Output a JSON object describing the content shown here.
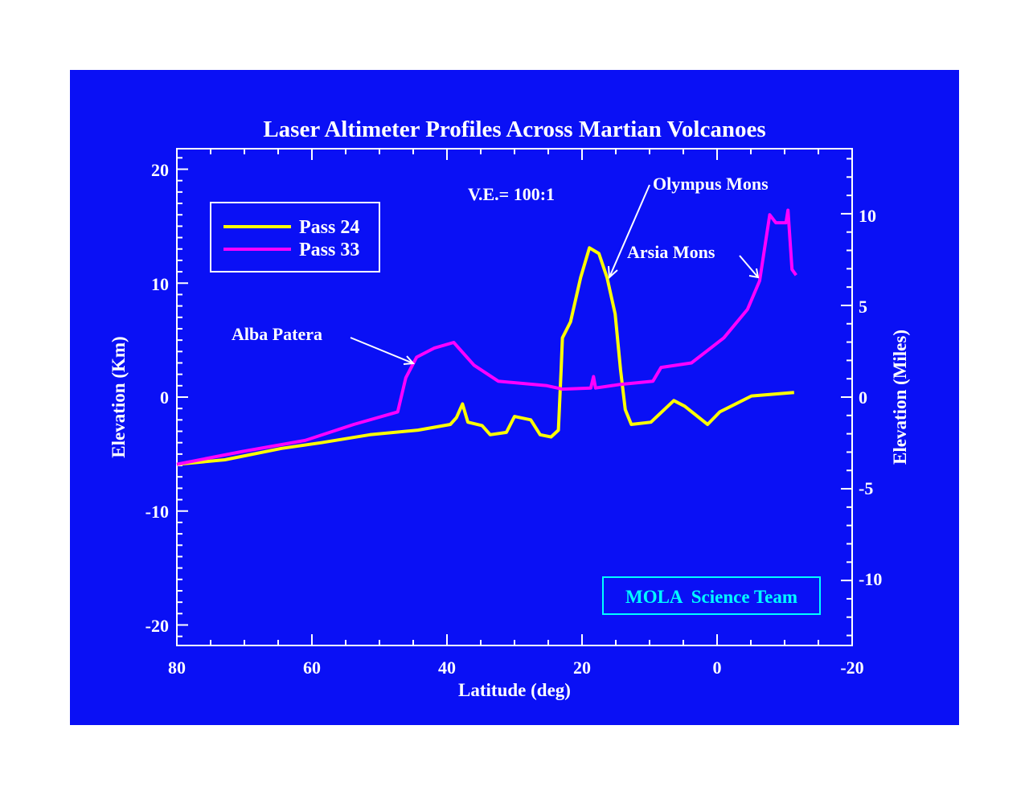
{
  "colors": {
    "background": "#0a10f5",
    "foreground": "#ffffff",
    "pass24": "#ffff00",
    "pass33": "#ff00ff",
    "credit": "#00ffff"
  },
  "chart_data": {
    "type": "line",
    "title": "Laser Altimeter Profiles Across Martian Volcanoes",
    "xlabel": "Latitude (deg)",
    "ylabel": "Elevation (Km)",
    "ylabel_right": "Elevation (Miles)",
    "xlim": [
      80,
      -20
    ],
    "ylim": [
      -21.8,
      21.8
    ],
    "xticks": [
      "80",
      "60",
      "40",
      "20",
      "0",
      "-20"
    ],
    "yticks": [
      "-20",
      "-10",
      "0",
      "10",
      "20"
    ],
    "yticks_right": [
      "-10",
      "-5",
      "0",
      "5",
      "10"
    ],
    "grid": false,
    "legend_position": "top-left",
    "annotation_ve": "V.E.= 100:1",
    "annotations": [
      "Olympus Mons",
      "Arsia Mons",
      "Alba Patera"
    ],
    "credit": "MOLA  Science Team",
    "series": [
      {
        "name": "Pass 24",
        "x": [
          80,
          72.9,
          64.5,
          58.6,
          51.4,
          44.3,
          39.5,
          38.6,
          37.7,
          36.9,
          34.8,
          33.6,
          31.2,
          30,
          27.6,
          26.2,
          24.6,
          23.5,
          23.1,
          22.9,
          21.7,
          20.2,
          18.9,
          17.5,
          16.3,
          15.1,
          14.3,
          13.6,
          12.7,
          9.8,
          6.4,
          4.8,
          1.4,
          -0.4,
          -5.1,
          -11.4
        ],
        "y": [
          -5.9,
          -5.5,
          -4.5,
          -4.0,
          -3.3,
          -2.9,
          -2.4,
          -1.8,
          -0.6,
          -2.2,
          -2.5,
          -3.3,
          -3.1,
          -1.7,
          -2.0,
          -3.3,
          -3.5,
          -2.9,
          2.4,
          5.2,
          6.6,
          10.5,
          13.1,
          12.6,
          10.5,
          7.3,
          2.4,
          -1.1,
          -2.4,
          -2.2,
          -0.3,
          -0.8,
          -2.4,
          -1.3,
          0.1,
          0.4
        ]
      },
      {
        "name": "Pass 33",
        "x": [
          80,
          70.5,
          61,
          53.8,
          47.3,
          46.1,
          44.5,
          41.9,
          39,
          36,
          32.4,
          25.2,
          22.9,
          18.7,
          18.3,
          18,
          14.5,
          9.5,
          8.3,
          3.8,
          -1,
          -4.5,
          -6.3,
          -7.8,
          -8.7,
          -10.2,
          -10.5,
          -11.1,
          -11.7
        ],
        "y": [
          -5.9,
          -4.8,
          -3.8,
          -2.4,
          -1.3,
          1.7,
          3.5,
          4.3,
          4.8,
          2.8,
          1.4,
          1.0,
          0.7,
          0.8,
          1.8,
          0.8,
          1.1,
          1.4,
          2.6,
          3.0,
          5.2,
          7.7,
          10.2,
          16.0,
          15.3,
          15.3,
          16.4,
          11.2,
          10.7
        ]
      }
    ]
  }
}
